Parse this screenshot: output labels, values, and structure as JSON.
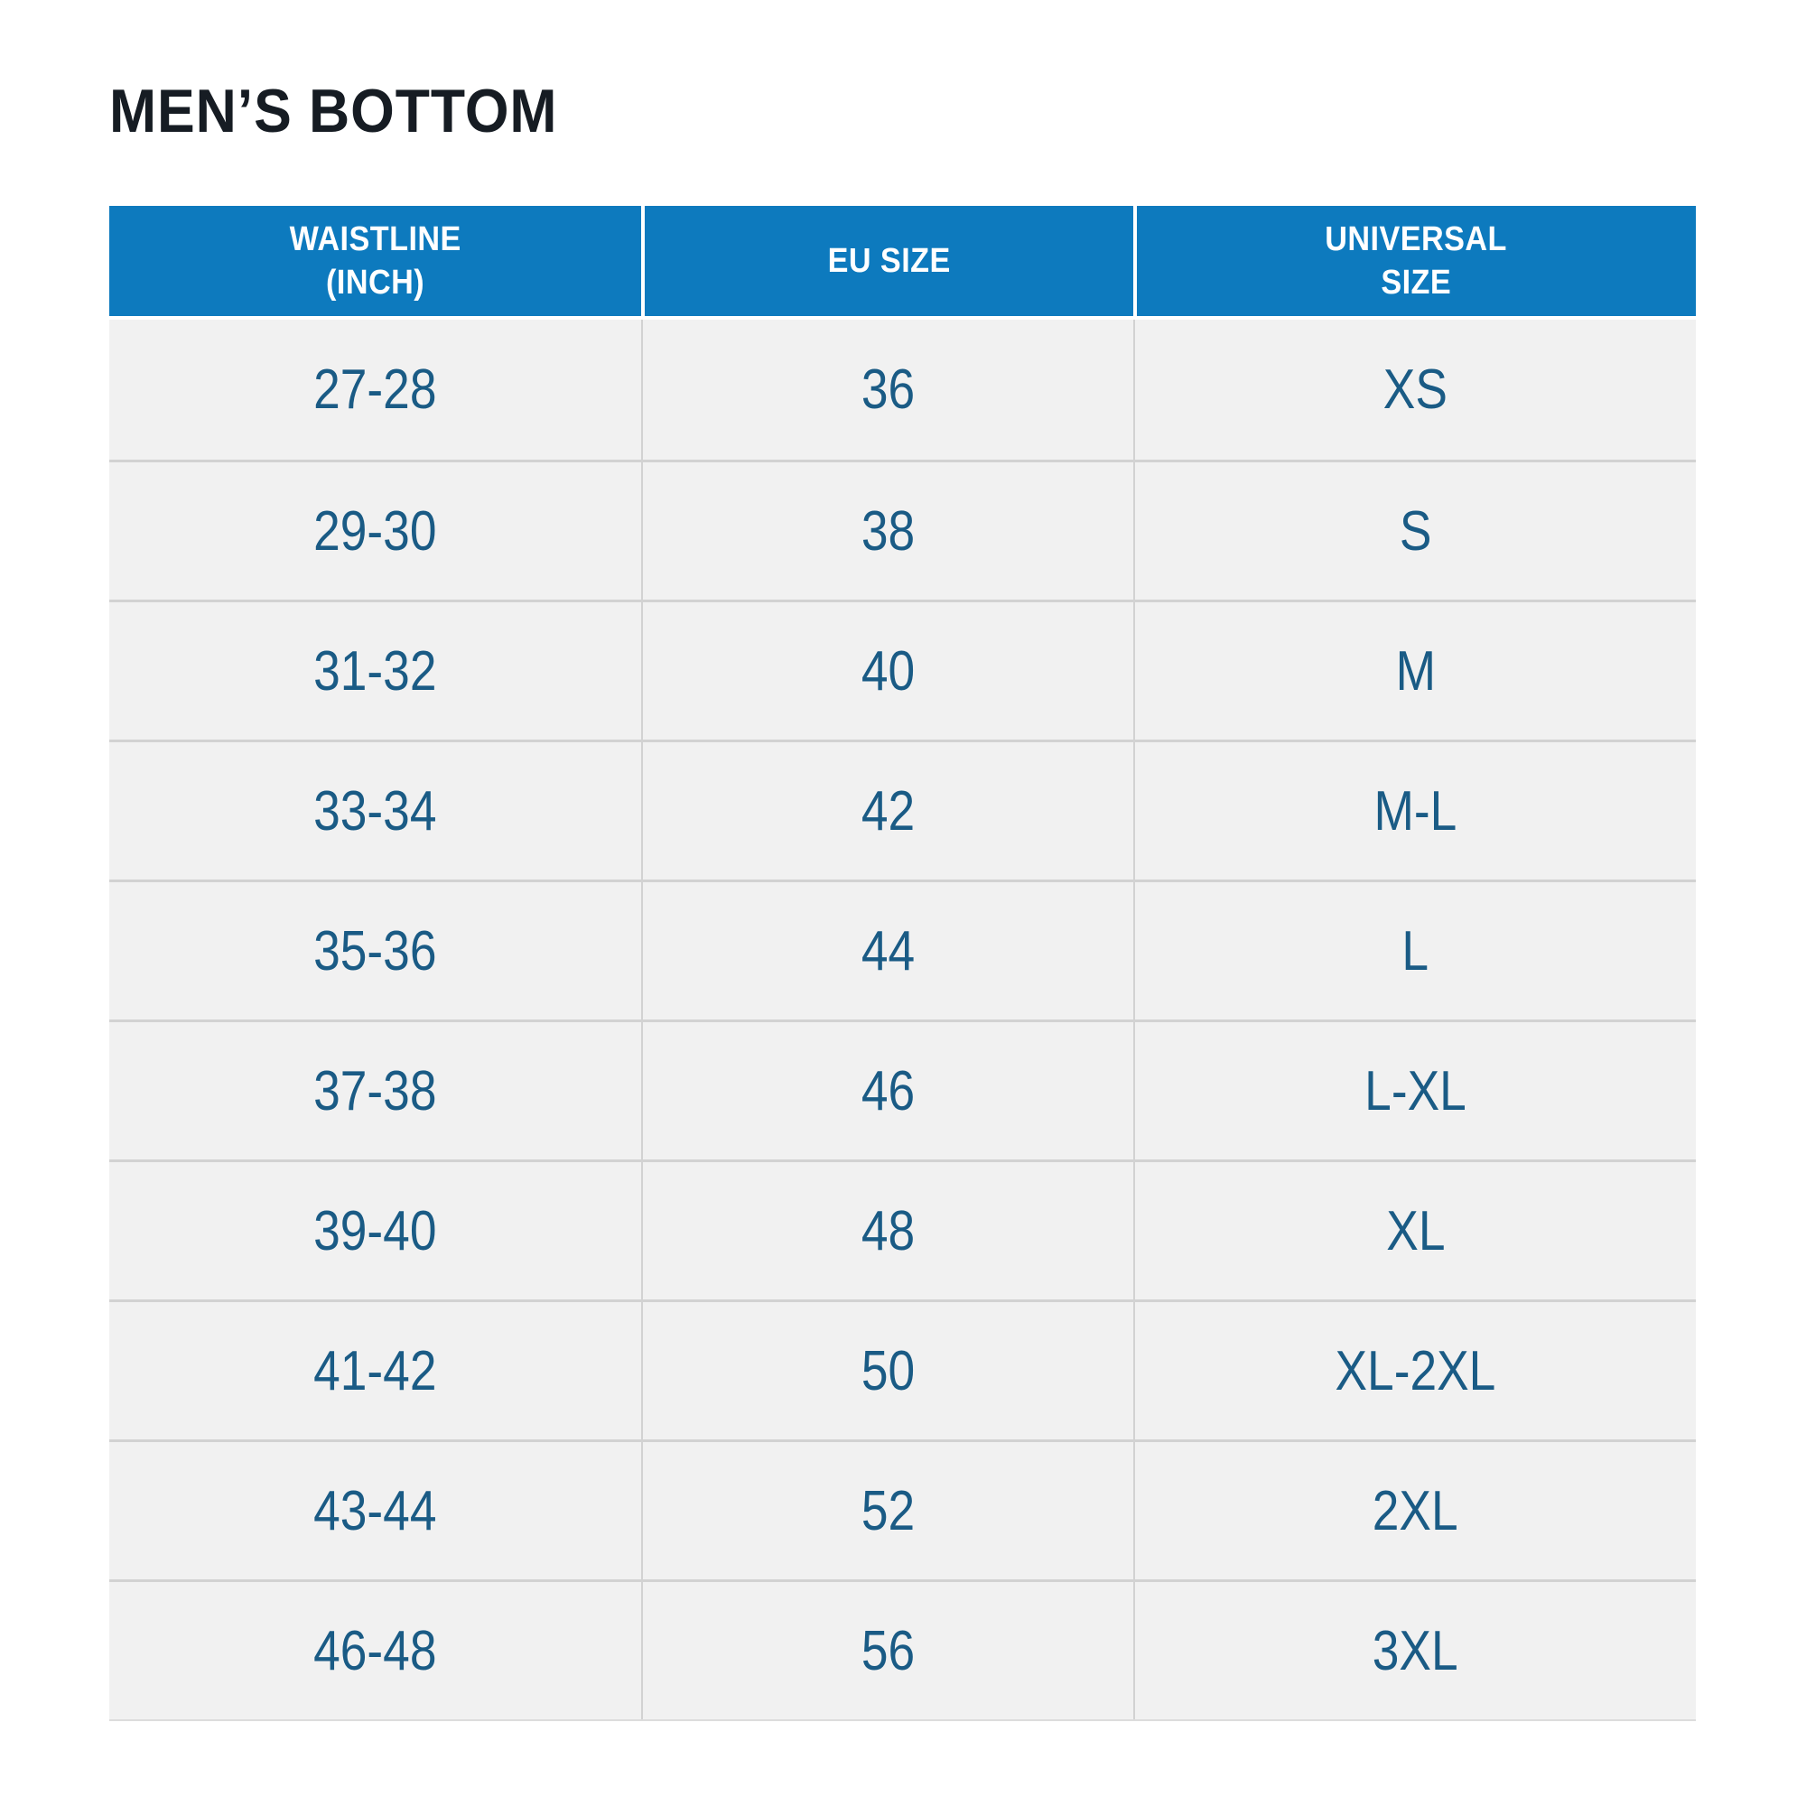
{
  "chart_data": {
    "type": "table",
    "title": "MEN’S BOTTOM",
    "columns": [
      "WAISTLINE (INCH)",
      "EU SIZE",
      "UNIVERSAL SIZE"
    ],
    "rows": [
      [
        "27-28",
        "36",
        "XS"
      ],
      [
        "29-30",
        "38",
        "S"
      ],
      [
        "31-32",
        "40",
        "M"
      ],
      [
        "33-34",
        "42",
        "M-L"
      ],
      [
        "35-36",
        "44",
        "L"
      ],
      [
        "37-38",
        "46",
        "L-XL"
      ],
      [
        "39-40",
        "48",
        "XL"
      ],
      [
        "41-42",
        "50",
        "XL-2XL"
      ],
      [
        "43-44",
        "52",
        "2XL"
      ],
      [
        "46-48",
        "56",
        "3XL"
      ]
    ],
    "layout": {
      "grid": "horizontal-and-vertical-rules",
      "header_position": "top"
    }
  },
  "header_display": [
    [
      "WAISTLINE",
      "(INCH)"
    ],
    [
      "EU SIZE",
      ""
    ],
    [
      "UNIVERSAL",
      "SIZE"
    ]
  ],
  "colors": {
    "page_bg": "#ffffff",
    "title_text": "#161c23",
    "header_bg": "#0d7abe",
    "header_text": "#ffffff",
    "row_bg": "#f1f1f1",
    "cell_text": "#1a5b85",
    "divider": "#d2d2d2"
  }
}
